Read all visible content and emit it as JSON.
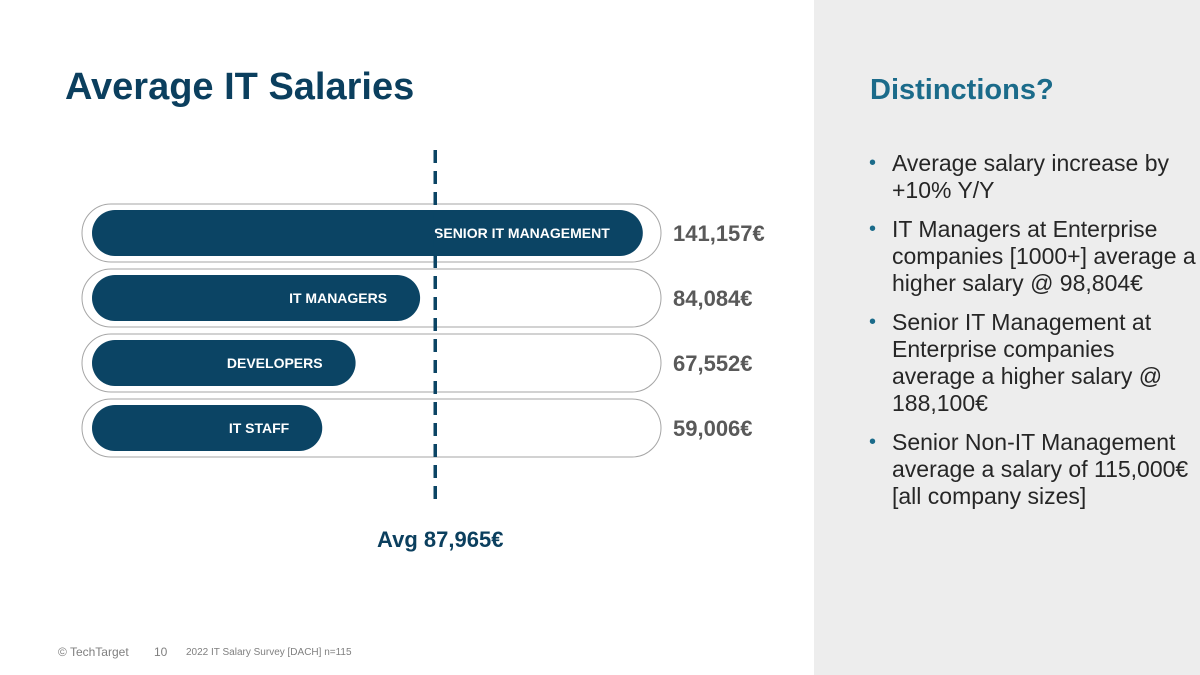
{
  "slide": {
    "title": "Average IT Salaries"
  },
  "chart_data": {
    "type": "bar",
    "orientation": "horizontal",
    "categories": [
      "SENIOR IT MANAGEMENT",
      "IT MANAGERS",
      "DEVELOPERS",
      "IT STAFF"
    ],
    "values": [
      141157,
      84084,
      67552,
      59006
    ],
    "value_labels": [
      "141,157€",
      "84,084€",
      "67,552€",
      "59,006€"
    ],
    "reference_line": {
      "value": 87965,
      "label": "Avg 87,965€"
    },
    "xlim": [
      0,
      143000
    ],
    "colors": {
      "bar": "#0b4464",
      "track": "#ffffff",
      "track_border": "#a6a6a6",
      "avg_line": "#0b4464"
    }
  },
  "panel": {
    "title": "Distinctions?",
    "bullets": [
      "Average salary increase by +10% Y/Y",
      "IT Managers at Enterprise companies [1000+] average a higher salary @ 98,804€",
      "Senior IT Management at Enterprise companies average a higher salary @ 188,100€",
      "Senior Non-IT Management average a salary of 115,000€ [all company sizes]"
    ]
  },
  "footer": {
    "copyright": "© TechTarget",
    "page_number": "10",
    "source": "2022 IT Salary Survey [DACH] n=115"
  }
}
